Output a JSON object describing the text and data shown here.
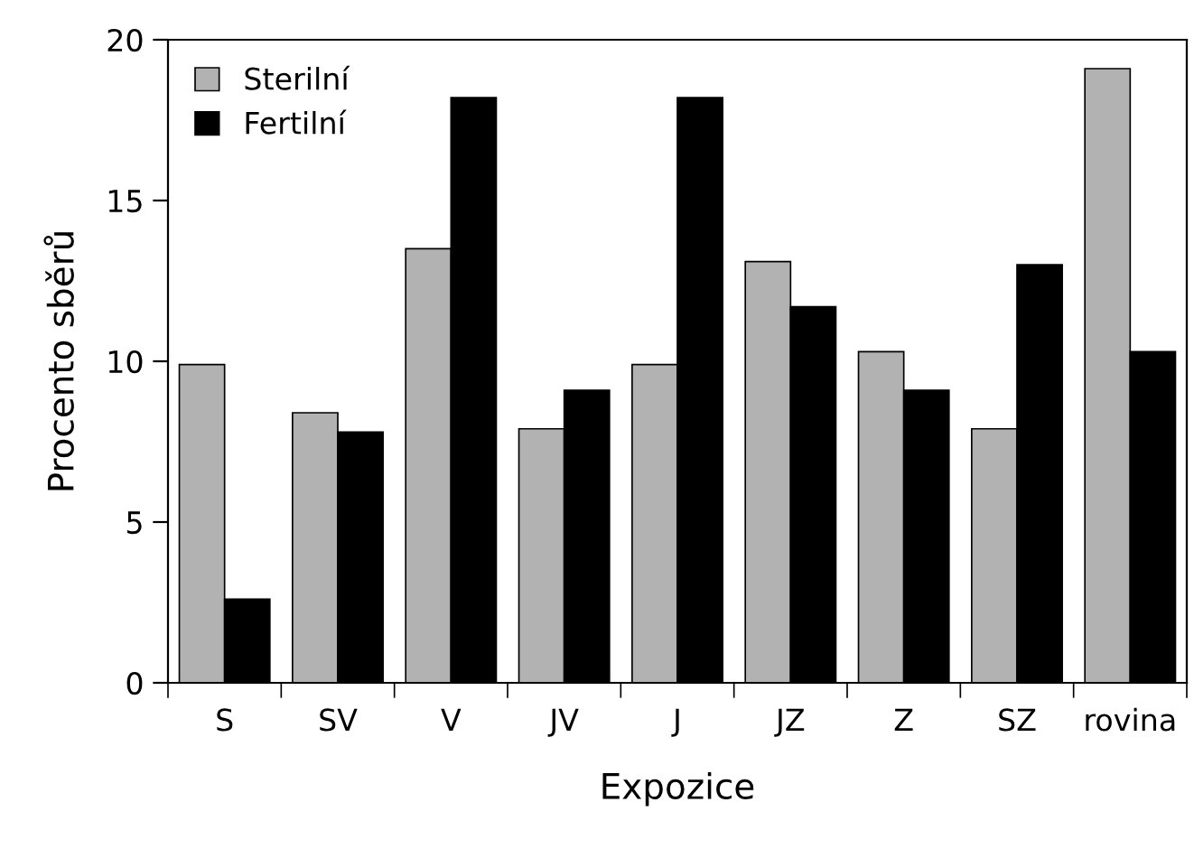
{
  "chart_data": {
    "type": "bar",
    "xlabel": "Expozice",
    "ylabel": "Procento sběrů",
    "categories": [
      "S",
      "SV",
      "V",
      "JV",
      "J",
      "JZ",
      "Z",
      "SZ",
      "rovina"
    ],
    "series": [
      {
        "name": "Sterilní",
        "color": "#b2b2b2",
        "values": [
          9.9,
          8.4,
          13.5,
          7.9,
          9.9,
          13.1,
          10.3,
          7.9,
          19.1
        ]
      },
      {
        "name": "Fertilní",
        "color": "#000000",
        "values": [
          2.6,
          7.8,
          18.2,
          9.1,
          18.2,
          11.7,
          9.1,
          13.0,
          10.3
        ]
      }
    ],
    "ylim": [
      0,
      20
    ],
    "yticks": [
      0,
      5,
      10,
      15,
      20
    ],
    "grid": false,
    "legend": "top left"
  }
}
